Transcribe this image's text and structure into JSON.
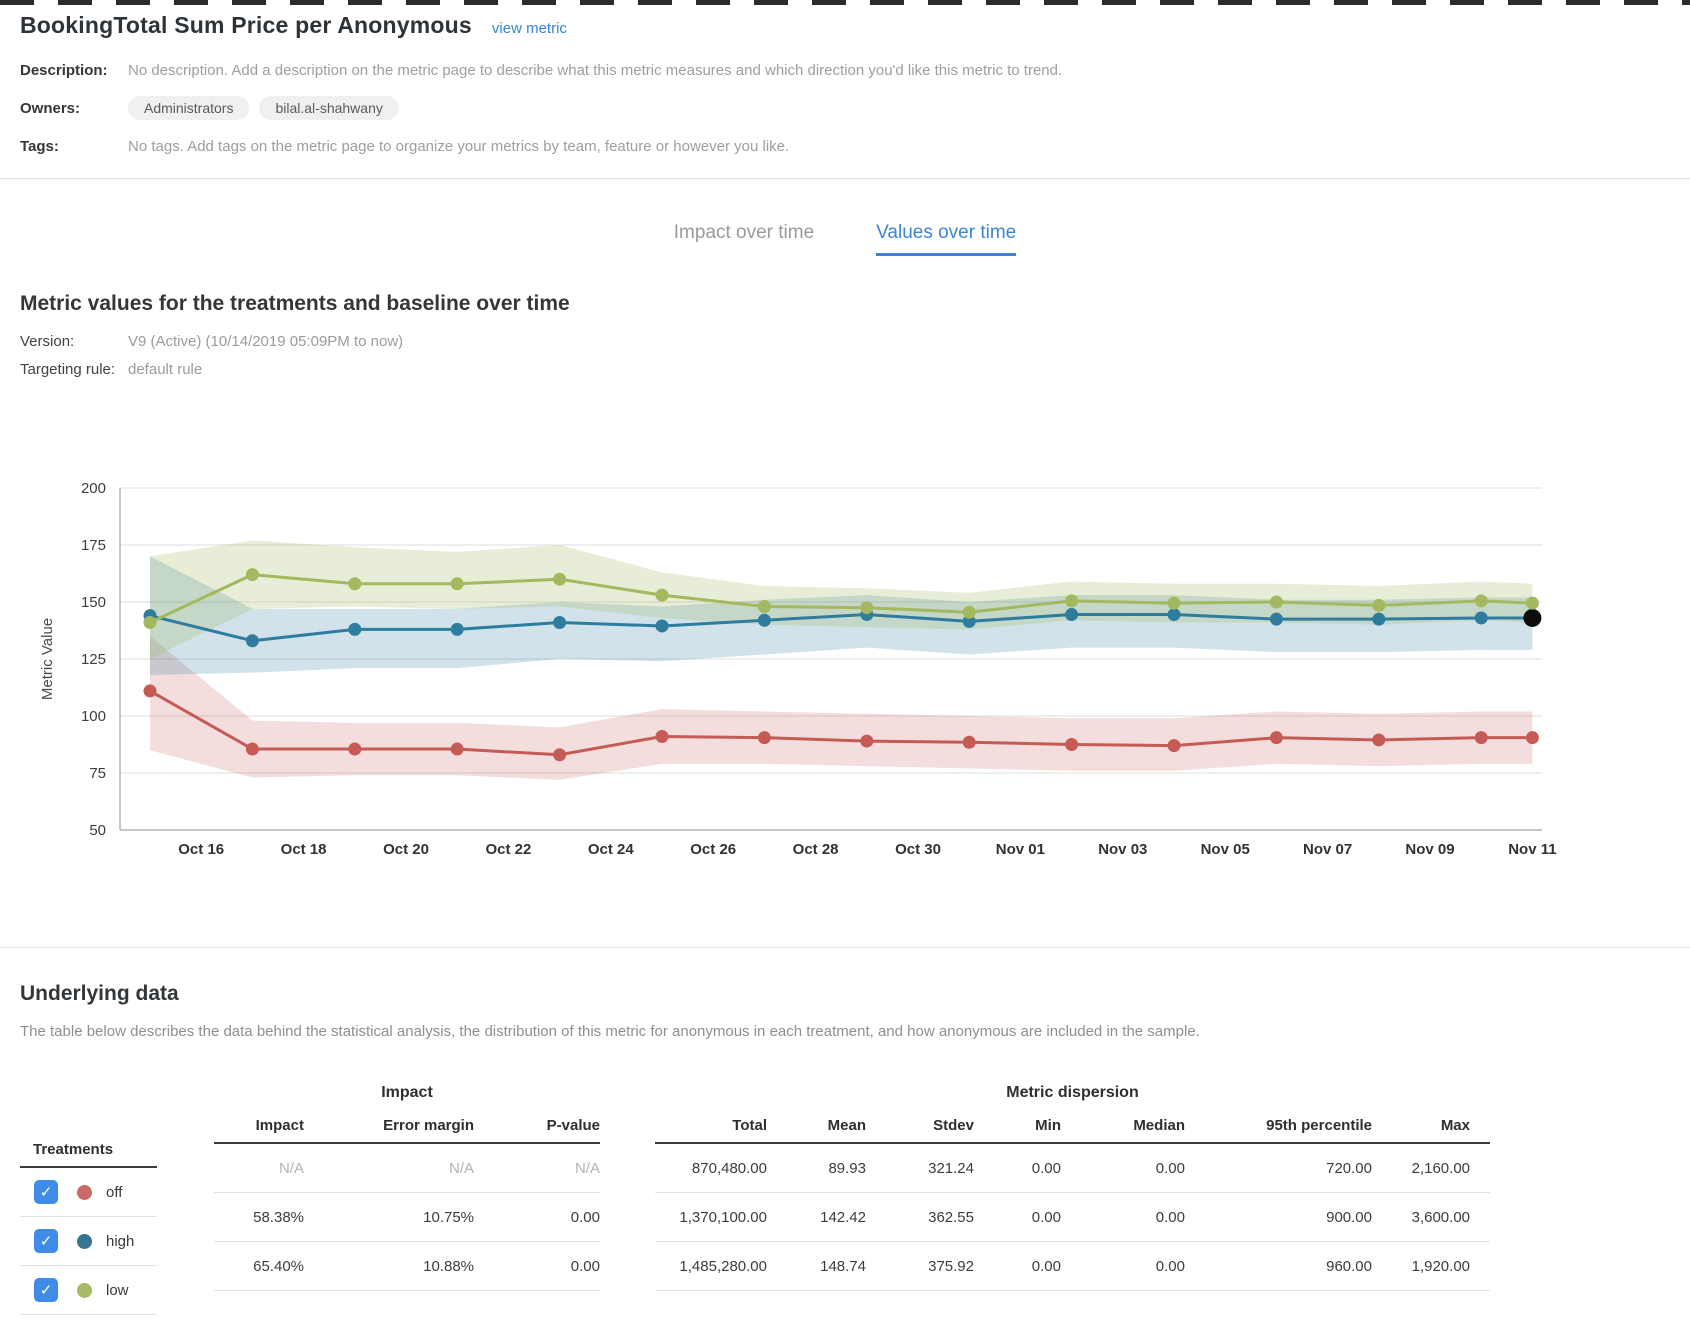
{
  "header": {
    "title": "BookingTotal Sum Price per Anonymous",
    "view_metric_label": "view metric"
  },
  "meta": {
    "description_label": "Description:",
    "description_text": "No description. Add a description on the metric page to describe what this metric measures and which direction you'd like this metric to trend.",
    "owners_label": "Owners:",
    "owners": [
      "Administrators",
      "bilal.al-shahwany"
    ],
    "tags_label": "Tags:",
    "tags_text": "No tags. Add tags on the metric page to organize your metrics by team, feature or however you like."
  },
  "tabs": [
    {
      "label": "Impact over time",
      "active": false
    },
    {
      "label": "Values over time",
      "active": true
    }
  ],
  "section": {
    "heading": "Metric values for the treatments and baseline over time",
    "version_label": "Version:",
    "version_value": "V9 (Active) (10/14/2019 05:09PM to now)",
    "targeting_label": "Targeting rule:",
    "targeting_value": "default rule"
  },
  "chart_data": {
    "type": "line",
    "title": "",
    "xlabel": "",
    "ylabel": "Metric Value",
    "ylim": [
      50,
      200
    ],
    "yticks": [
      50,
      75,
      100,
      125,
      150,
      175,
      200
    ],
    "grid": true,
    "x_tick_labels": [
      "Oct 16",
      "Oct 18",
      "Oct 20",
      "Oct 22",
      "Oct 24",
      "Oct 26",
      "Oct 28",
      "Oct 30",
      "Nov 01",
      "Nov 03",
      "Nov 05",
      "Nov 07",
      "Nov 09",
      "Nov 11"
    ],
    "x_tick_days": [
      1,
      3,
      5,
      7,
      9,
      11,
      13,
      15,
      17,
      19,
      21,
      23,
      25,
      27
    ],
    "point_dates": [
      "Oct 15",
      "Oct 17",
      "Oct 19",
      "Oct 21",
      "Oct 23",
      "Oct 25",
      "Oct 27",
      "Oct 29",
      "Oct 31",
      "Nov 02",
      "Nov 04",
      "Nov 06",
      "Nov 08",
      "Nov 10",
      "Nov 11"
    ],
    "point_days": [
      0,
      2,
      4,
      6,
      8,
      10,
      12,
      14,
      16,
      18,
      20,
      22,
      24,
      26,
      27
    ],
    "series": [
      {
        "name": "off",
        "color": "#c65b56",
        "band_color": "rgba(198,91,86,0.20)",
        "values": [
          111,
          85.5,
          85.5,
          85.5,
          83,
          91,
          90.5,
          89,
          88.5,
          87.5,
          87,
          90.5,
          89.5,
          90.5,
          90.5
        ],
        "band_lower": [
          85,
          73,
          74,
          74,
          72,
          79,
          79,
          78,
          77,
          76,
          76,
          79,
          78,
          79,
          79
        ],
        "band_upper": [
          135,
          98,
          97,
          97,
          95,
          103,
          102,
          101,
          100,
          99,
          99,
          102,
          101,
          102,
          102
        ]
      },
      {
        "name": "high",
        "color": "#2e7c9e",
        "band_color": "rgba(46,124,158,0.22)",
        "values": [
          144,
          133,
          138,
          138,
          141,
          139.5,
          142,
          144.5,
          141.5,
          144.5,
          144.5,
          142.5,
          142.5,
          143,
          143
        ],
        "band_lower": [
          118,
          119,
          121,
          121,
          125,
          124,
          127,
          130,
          127,
          130,
          130,
          128,
          128,
          129,
          129
        ],
        "band_upper": [
          170,
          147,
          147,
          147,
          150,
          148,
          151,
          153,
          150,
          153,
          153,
          151,
          151,
          152,
          152
        ]
      },
      {
        "name": "low",
        "color": "#a4b860",
        "band_color": "rgba(164,184,96,0.26)",
        "values": [
          141,
          162,
          158,
          158,
          160,
          153,
          148,
          147.5,
          145.5,
          150.5,
          149.5,
          150,
          148.5,
          150.5,
          149.5
        ],
        "band_lower": [
          125,
          147,
          148,
          147,
          148,
          143,
          140,
          139,
          138,
          142,
          141,
          141,
          140,
          142,
          141
        ],
        "band_upper": [
          170,
          177,
          174,
          172,
          175,
          163,
          157,
          156,
          154,
          159,
          158,
          158,
          157,
          159,
          158
        ]
      }
    ],
    "last_point_highlight": {
      "series": "high",
      "color": "#0d0d0d"
    }
  },
  "underlying": {
    "heading": "Underlying data",
    "description": "The table below describes the data behind the statistical analysis, the distribution of this metric for anonymous in each treatment, and how anonymous are included in the sample.",
    "table": {
      "treatments_header": "Treatments",
      "impact_group_header": "Impact",
      "dispersion_group_header": "Metric dispersion",
      "impact_columns": [
        "Impact",
        "Error margin",
        "P-value"
      ],
      "dispersion_columns": [
        "Total",
        "Mean",
        "Stdev",
        "Min",
        "Median",
        "95th percentile",
        "Max"
      ],
      "checkbox_color": "#3f8ce8",
      "check_glyph": "✓",
      "rows": [
        {
          "treatment": "off",
          "color": "#c96a66",
          "checked": true,
          "impact": [
            "N/A",
            "N/A",
            "N/A"
          ],
          "dispersion": [
            "870,480.00",
            "89.93",
            "321.24",
            "0.00",
            "0.00",
            "720.00",
            "2,160.00"
          ]
        },
        {
          "treatment": "high",
          "color": "#36748f",
          "checked": true,
          "impact": [
            "58.38%",
            "10.75%",
            "0.00"
          ],
          "dispersion": [
            "1,370,100.00",
            "142.42",
            "362.55",
            "0.00",
            "0.00",
            "900.00",
            "3,600.00"
          ]
        },
        {
          "treatment": "low",
          "color": "#a7b964",
          "checked": true,
          "impact": [
            "65.40%",
            "10.88%",
            "0.00"
          ],
          "dispersion": [
            "1,485,280.00",
            "148.74",
            "375.92",
            "0.00",
            "0.00",
            "960.00",
            "1,920.00"
          ]
        }
      ]
    }
  },
  "colors": {
    "accent_blue": "#3b86d2",
    "link_blue": "#3585d6",
    "axis_gray": "#b5b5b5",
    "grid_gray": "#e8e8e8"
  }
}
